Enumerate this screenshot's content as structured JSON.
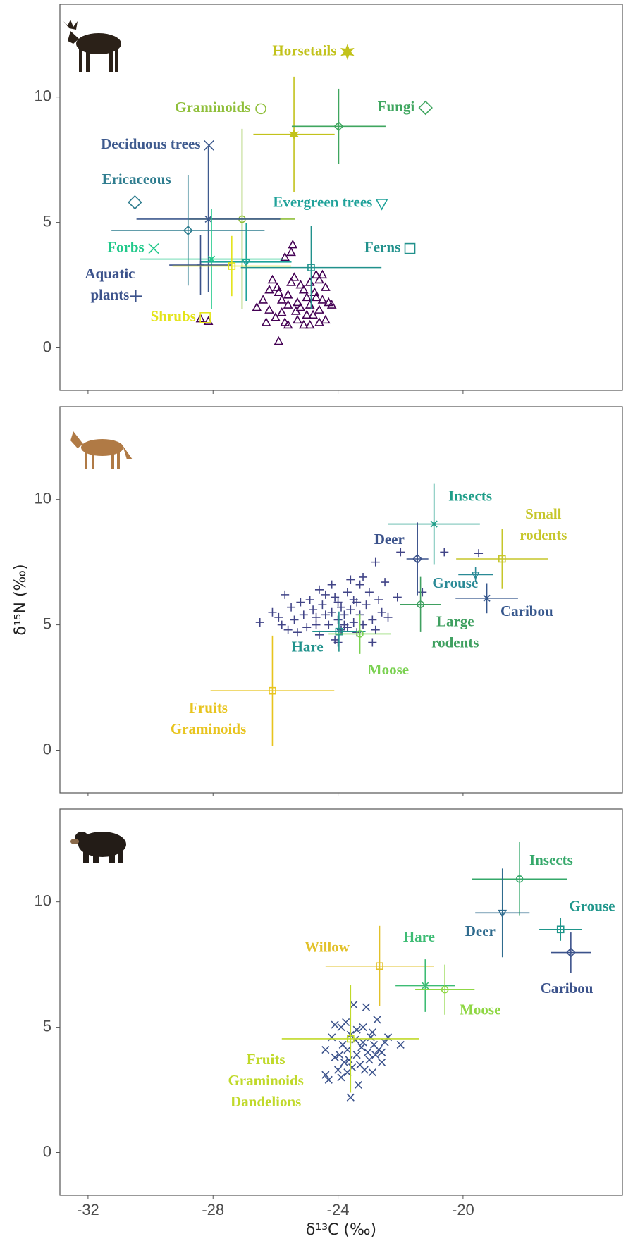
{
  "chart_data": [
    {
      "type": "scatter",
      "xlim": [
        -32.9,
        -14.9
      ],
      "ylim": [
        -1.7,
        13.7
      ],
      "yticks": [
        0,
        5,
        10
      ],
      "label_symbols": true,
      "sources": [
        {
          "label": [
            "Horsetails"
          ],
          "color": "#c2c21b",
          "marker": "star",
          "x": -25.41,
          "y": 8.51,
          "x_sd": 1.3,
          "y_sd": 2.3
        },
        {
          "label": [
            "Graminoids"
          ],
          "color": "#8fbf3a",
          "marker": "circle",
          "x": -27.07,
          "y": 5.13,
          "x_sd": 1.7,
          "y_sd": 3.6
        },
        {
          "label": [
            "Fungi"
          ],
          "color": "#3fa65f",
          "marker": "diamond",
          "x": -23.98,
          "y": 8.83,
          "x_sd": 1.5,
          "y_sd": 1.5
        },
        {
          "label": [
            "Deciduous trees"
          ],
          "color": "#3e5a8e",
          "marker": "cross",
          "x": -28.15,
          "y": 5.13,
          "x_sd": 2.3,
          "y_sd": 2.9
        },
        {
          "label": [
            "Ericaceous"
          ],
          "color": "#2f7d8f",
          "marker": "diamond",
          "x": -28.8,
          "y": 4.68,
          "x_sd": 2.45,
          "y_sd": 2.2
        },
        {
          "label": [
            "Evergreen trees"
          ],
          "color": "#20a29a",
          "marker": "triangle-down",
          "x": -26.94,
          "y": 3.42,
          "x_sd": 1.45,
          "y_sd": 1.55
        },
        {
          "label": [
            "Forbs"
          ],
          "color": "#22c98b",
          "marker": "cross",
          "x": -28.05,
          "y": 3.54,
          "x_sd": 2.3,
          "y_sd": 2.0
        },
        {
          "label": [
            "Ferns"
          ],
          "color": "#21918c",
          "marker": "square",
          "x": -24.86,
          "y": 3.2,
          "x_sd": 2.25,
          "y_sd": 1.65
        },
        {
          "label": [
            "Aquatic",
            "plants"
          ],
          "color": "#3b528b",
          "marker": "plus",
          "x": -28.4,
          "y": 3.3,
          "x_sd": 1.0,
          "y_sd": 1.2
        },
        {
          "label": [
            "Shrubs"
          ],
          "color": "#e4e419",
          "marker": "square",
          "x": -27.4,
          "y": 3.26,
          "x_sd": 1.9,
          "y_sd": 1.2
        }
      ],
      "consumer": {
        "marker": "triangle",
        "color": "#440154",
        "x": [
          -28.4,
          -28.15,
          -26.2,
          -26.3,
          -26.0,
          -25.9,
          -25.7,
          -25.6,
          -25.8,
          -25.6,
          -25.9,
          -25.5,
          -25.45,
          -25.7,
          -25.3,
          -25.2,
          -25.1,
          -25.0,
          -24.9,
          -24.7,
          -24.6,
          -24.5,
          -24.6,
          -24.4,
          -24.3,
          -24.4,
          -24.8,
          -24.9,
          -25.1,
          -25.3,
          -25.5,
          -25.4,
          -26.4,
          -26.6,
          -26.1,
          -25.95,
          -24.7,
          -24.9,
          -25.2,
          -25.0,
          -24.6,
          -24.75,
          -25.35,
          -25.6,
          -26.2,
          -24.5,
          -24.2,
          -25.8
        ],
        "y": [
          1.15,
          1.05,
          1.5,
          1.0,
          1.2,
          0.25,
          1.0,
          0.9,
          1.9,
          2.1,
          2.2,
          3.8,
          4.1,
          3.6,
          1.8,
          1.6,
          2.3,
          2.0,
          2.6,
          2.9,
          2.7,
          1.9,
          1.5,
          2.4,
          1.8,
          1.1,
          1.3,
          0.9,
          0.9,
          1.1,
          2.6,
          2.8,
          1.9,
          1.6,
          2.7,
          2.4,
          2.0,
          1.7,
          2.5,
          1.3,
          1.0,
          2.2,
          1.45,
          1.7,
          2.3,
          2.9,
          1.7,
          1.4
        ]
      }
    },
    {
      "type": "scatter",
      "xlim": [
        -32.9,
        -14.9
      ],
      "ylim": [
        -1.7,
        13.7
      ],
      "yticks": [
        0,
        5,
        10
      ],
      "ylabel": "δ¹⁵N (‰)",
      "label_symbols": false,
      "sources": [
        {
          "label": [
            "Insects"
          ],
          "color": "#1f9e89",
          "marker": "cross",
          "x": -20.93,
          "y": 9.02,
          "x_sd": 1.47,
          "y_sd": 1.6
        },
        {
          "label": [
            "Deer"
          ],
          "color": "#3b528b",
          "marker": "diamond",
          "x": -21.46,
          "y": 7.63,
          "x_sd": 0.35,
          "y_sd": 1.45
        },
        {
          "label": [
            "Small",
            "rodents"
          ],
          "color": "#c6c62a",
          "marker": "square",
          "x": -18.75,
          "y": 7.63,
          "x_sd": 1.47,
          "y_sd": 1.2
        },
        {
          "label": [
            "Grouse"
          ],
          "color": "#2a8a96",
          "marker": "triangle-down",
          "x": -19.6,
          "y": 7.0,
          "x_sd": 0.55,
          "y_sd": 0.3
        },
        {
          "label": [
            "Caribou"
          ],
          "color": "#35568c",
          "marker": "cross",
          "x": -19.24,
          "y": 6.06,
          "x_sd": 1.0,
          "y_sd": 0.6
        },
        {
          "label": [
            "Large",
            "rodents"
          ],
          "color": "#3fa060",
          "marker": "circle",
          "x": -21.36,
          "y": 5.81,
          "x_sd": 0.65,
          "y_sd": 1.1
        },
        {
          "label": [
            "Hare"
          ],
          "color": "#20928c",
          "marker": "square",
          "x": -23.97,
          "y": 4.73,
          "x_sd": 0.85,
          "y_sd": 0.8
        },
        {
          "label": [
            "Moose"
          ],
          "color": "#7ad151",
          "marker": "circle",
          "x": -23.3,
          "y": 4.64,
          "x_sd": 1.0,
          "y_sd": 0.8
        },
        {
          "label": [
            "Fruits",
            "Graminoids"
          ],
          "color": "#e8c41e",
          "marker": "square",
          "x": -26.1,
          "y": 2.37,
          "x_sd": 1.98,
          "y_sd": 2.2
        }
      ],
      "consumer": {
        "marker": "plus",
        "color": "#414487",
        "x": [
          -26.5,
          -26.1,
          -25.8,
          -25.6,
          -25.5,
          -25.4,
          -25.2,
          -25.1,
          -25.0,
          -24.9,
          -24.8,
          -24.7,
          -24.6,
          -24.5,
          -24.4,
          -24.3,
          -24.2,
          -24.1,
          -24.1,
          -24.0,
          -23.9,
          -23.9,
          -23.8,
          -23.7,
          -23.7,
          -23.6,
          -23.5,
          -23.5,
          -23.4,
          -23.3,
          -23.3,
          -23.2,
          -23.1,
          -23.0,
          -22.9,
          -22.8,
          -22.8,
          -22.7,
          -22.6,
          -22.5,
          -23.6,
          -24.2,
          -24.6,
          -25.3,
          -25.9,
          -24.0,
          -23.8,
          -24.4,
          -23.2,
          -22.9,
          -24.0,
          -22.0,
          -22.1,
          -20.6,
          -19.5,
          -21.3,
          -24.7,
          -23.4,
          -22.4,
          -25.7
        ],
        "y": [
          5.1,
          5.5,
          5.0,
          4.8,
          5.7,
          5.2,
          5.9,
          5.4,
          4.9,
          6.0,
          5.6,
          5.3,
          4.6,
          5.8,
          6.2,
          5.0,
          5.5,
          4.4,
          6.1,
          5.2,
          4.8,
          5.7,
          5.4,
          6.3,
          4.9,
          5.6,
          5.1,
          6.0,
          4.7,
          5.4,
          6.6,
          5.0,
          5.8,
          6.3,
          5.2,
          4.8,
          7.5,
          6.0,
          5.5,
          6.7,
          6.8,
          6.6,
          6.4,
          4.7,
          5.3,
          5.9,
          5.0,
          5.4,
          6.9,
          4.3,
          4.3,
          7.9,
          6.1,
          7.9,
          7.85,
          6.3,
          5.0,
          5.9,
          5.3,
          6.2
        ]
      }
    },
    {
      "type": "scatter",
      "xlim": [
        -32.9,
        -14.9
      ],
      "ylim": [
        -1.7,
        13.7
      ],
      "yticks": [
        0,
        5,
        10
      ],
      "xticks": [
        -32,
        -28,
        -24,
        -20
      ],
      "xlabel": "δ¹³C (‰)",
      "label_symbols": false,
      "sources": [
        {
          "label": [
            "Insects"
          ],
          "color": "#35a86a",
          "marker": "circle",
          "x": -18.19,
          "y": 10.91,
          "x_sd": 1.53,
          "y_sd": 1.47
        },
        {
          "label": [
            "Deer"
          ],
          "color": "#2f6b8e",
          "marker": "triangle-down",
          "x": -18.74,
          "y": 9.56,
          "x_sd": 0.87,
          "y_sd": 1.77
        },
        {
          "label": [
            "Grouse"
          ],
          "color": "#1f968b",
          "marker": "square",
          "x": -16.88,
          "y": 8.9,
          "x_sd": 0.68,
          "y_sd": 0.45
        },
        {
          "label": [
            "Caribou"
          ],
          "color": "#3b528b",
          "marker": "diamond",
          "x": -16.55,
          "y": 7.98,
          "x_sd": 0.65,
          "y_sd": 0.8
        },
        {
          "label": [
            "Willow"
          ],
          "color": "#e2c12a",
          "marker": "square",
          "x": -22.67,
          "y": 7.44,
          "x_sd": 1.73,
          "y_sd": 1.6
        },
        {
          "label": [
            "Hare"
          ],
          "color": "#3dbc74",
          "marker": "cross",
          "x": -21.21,
          "y": 6.66,
          "x_sd": 0.95,
          "y_sd": 1.05
        },
        {
          "label": [
            "Moose"
          ],
          "color": "#8fd744",
          "marker": "circle",
          "x": -20.58,
          "y": 6.5,
          "x_sd": 0.95,
          "y_sd": 1.0
        },
        {
          "label": [
            "Fruits",
            "Graminoids",
            "Dandelions"
          ],
          "color": "#c0d92a",
          "marker": "square",
          "x": -23.6,
          "y": 4.54,
          "x_sd": 2.2,
          "y_sd": 2.15
        }
      ],
      "consumer": {
        "marker": "cross",
        "color": "#3b528b",
        "x": [
          -24.4,
          -24.3,
          -24.4,
          -24.2,
          -24.1,
          -24.0,
          -23.95,
          -23.9,
          -23.85,
          -23.8,
          -23.75,
          -23.7,
          -23.65,
          -23.6,
          -23.55,
          -23.5,
          -23.45,
          -23.4,
          -23.35,
          -23.3,
          -23.25,
          -23.2,
          -23.15,
          -23.1,
          -23.05,
          -23.0,
          -22.95,
          -22.9,
          -22.85,
          -22.8,
          -22.75,
          -22.7,
          -22.6,
          -22.5,
          -22.4,
          -22.0,
          -23.6,
          -23.9,
          -24.1,
          -23.4,
          -22.9,
          -23.7,
          -23.2,
          -22.6
        ],
        "y": [
          3.1,
          2.9,
          4.1,
          4.6,
          3.8,
          3.3,
          3.9,
          5.0,
          4.3,
          3.6,
          5.2,
          4.1,
          3.7,
          2.2,
          3.4,
          5.9,
          4.5,
          3.9,
          2.7,
          3.5,
          4.2,
          5.0,
          3.3,
          5.8,
          4.0,
          3.7,
          4.6,
          3.2,
          4.3,
          3.9,
          5.3,
          4.1,
          3.6,
          4.4,
          4.6,
          4.3,
          4.7,
          3.0,
          5.1,
          4.9,
          4.8,
          3.2,
          4.4,
          4.0
        ]
      }
    }
  ]
}
